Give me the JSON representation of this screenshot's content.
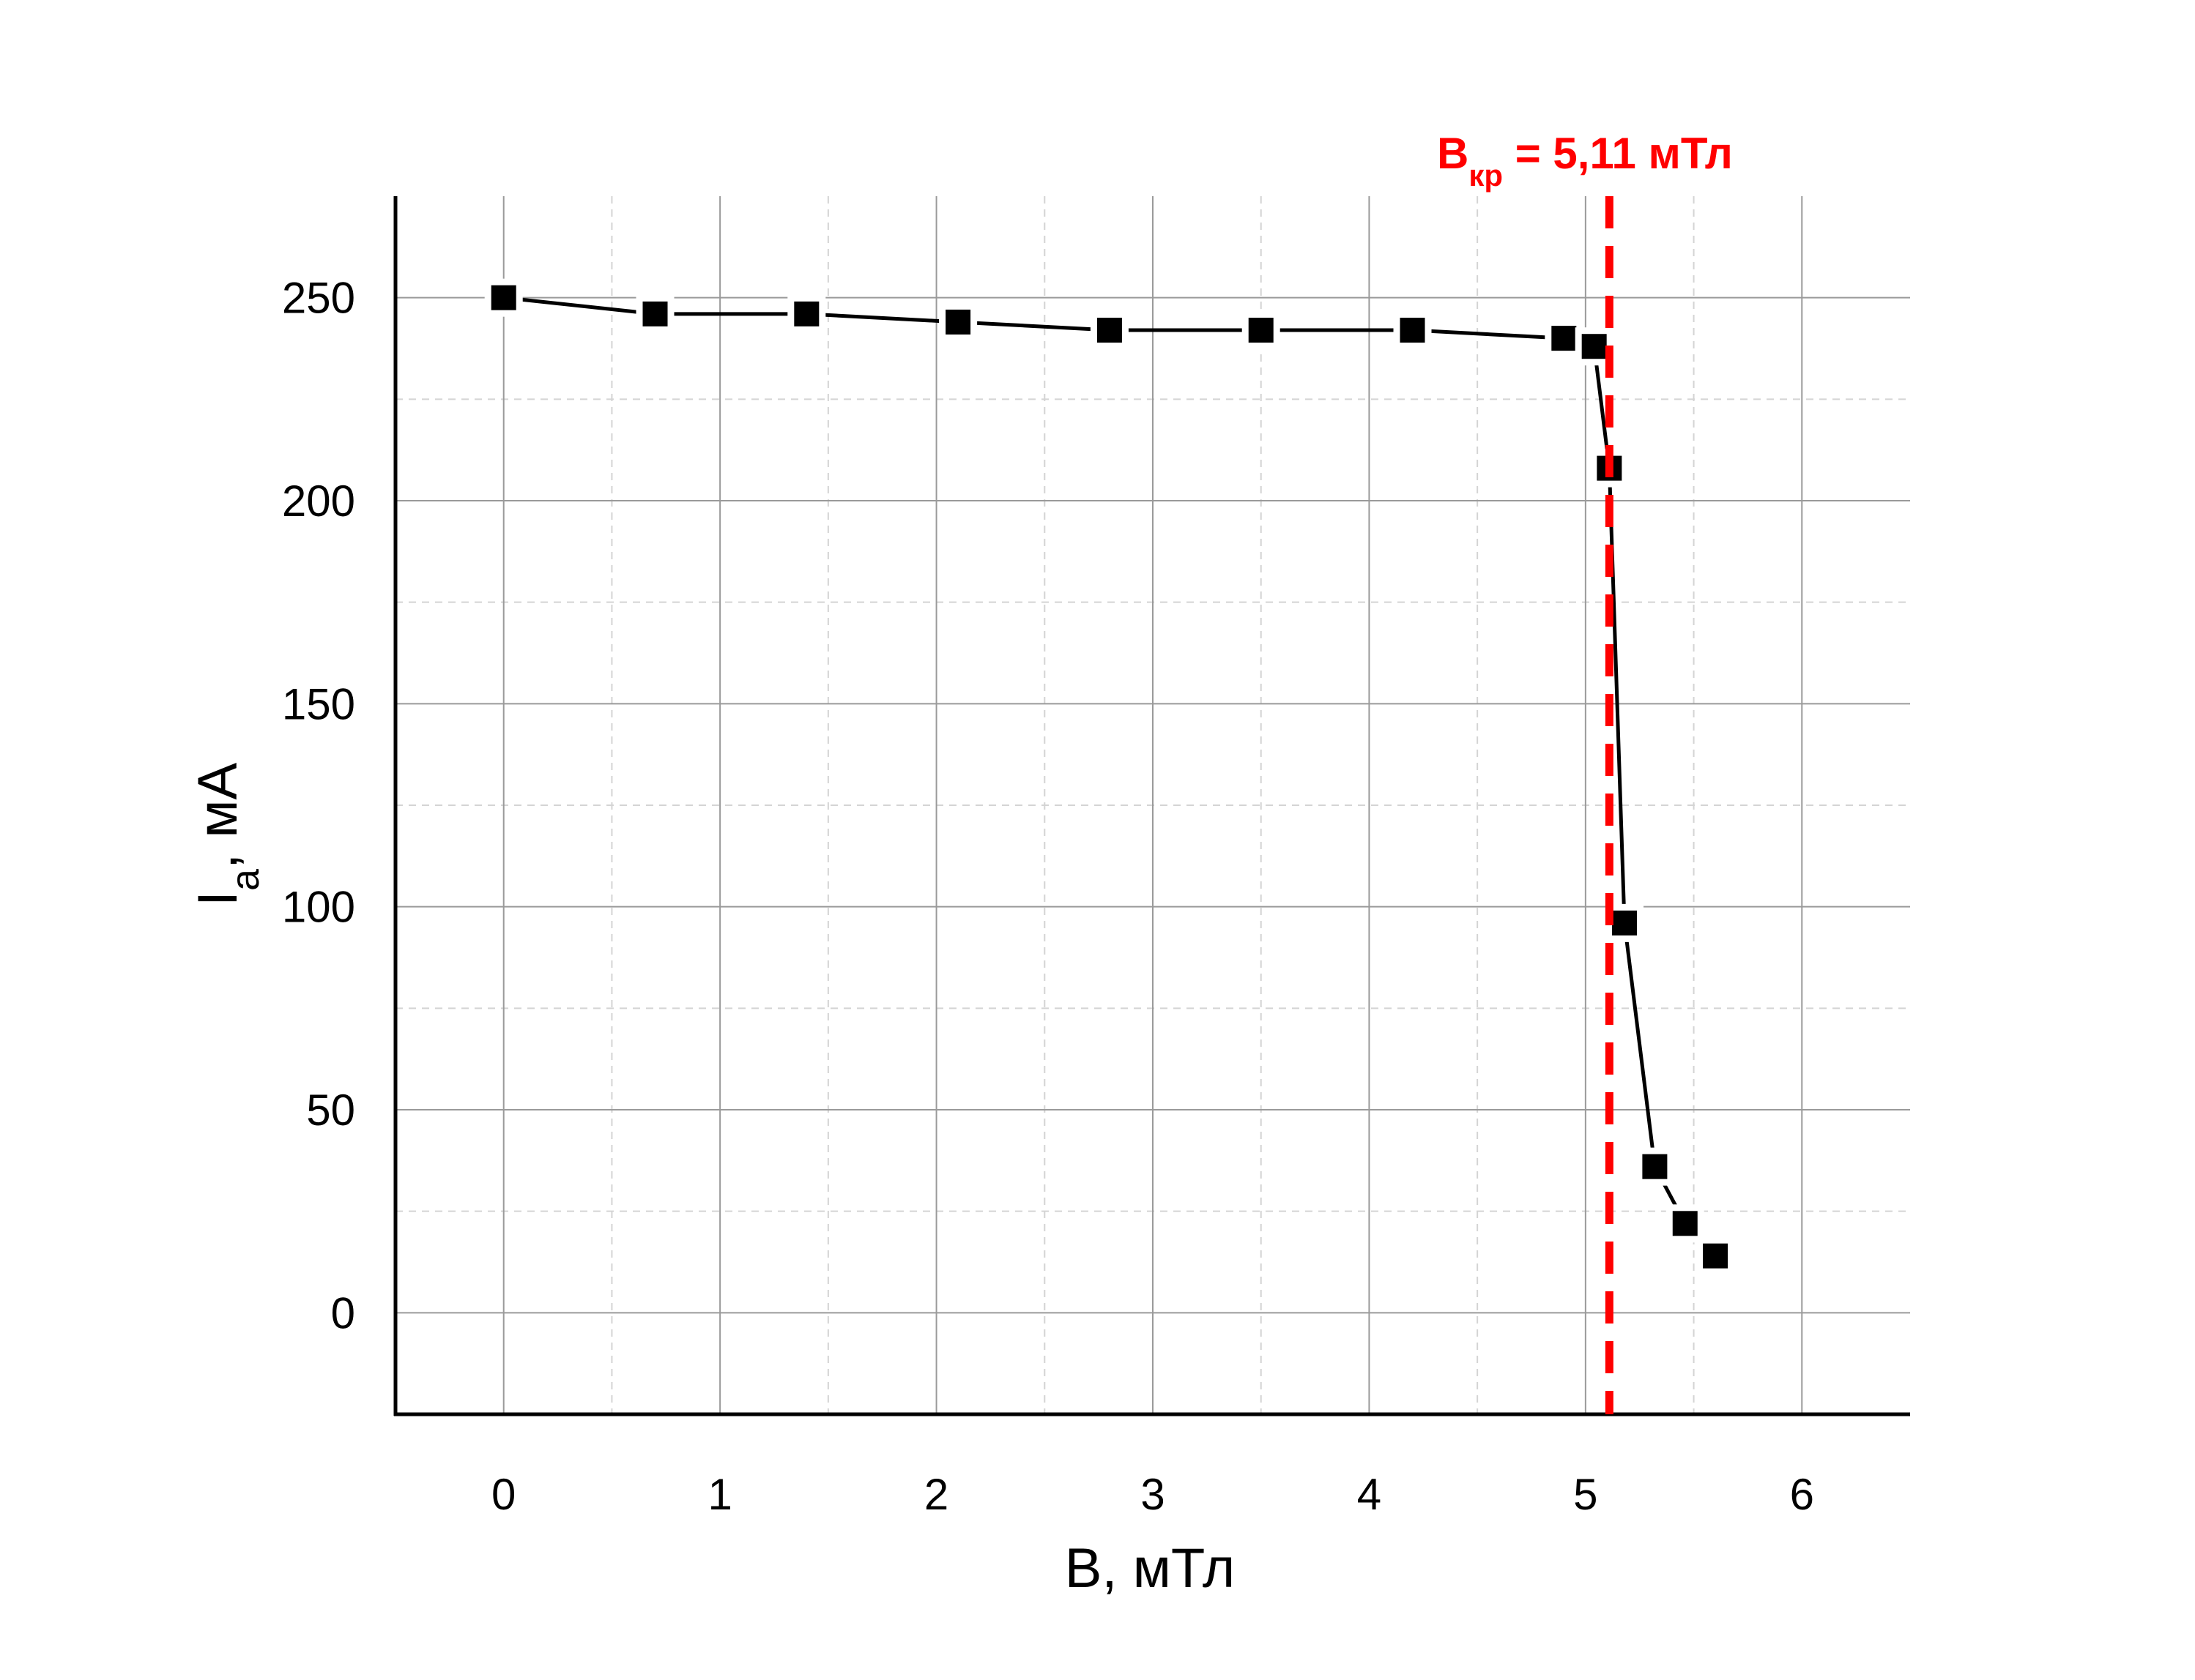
{
  "chart_data": {
    "type": "line",
    "xlabel": "B, мТл",
    "ylabel": {
      "main": "I",
      "sub": "a",
      "rest": ", мА"
    },
    "xlim": [
      -0.5,
      6.5
    ],
    "ylim": [
      -25,
      275
    ],
    "x_ticks": [
      0,
      1,
      2,
      3,
      4,
      5,
      6
    ],
    "y_ticks": [
      0,
      50,
      100,
      150,
      200,
      250
    ],
    "x_minor_ticks": [
      0.5,
      1.5,
      2.5,
      3.5,
      4.5,
      5.5
    ],
    "y_minor_ticks": [
      25,
      75,
      125,
      175,
      225
    ],
    "grid": true,
    "series": [
      {
        "marker": "square",
        "color": "#000000",
        "x": [
          0,
          0.7,
          1.4,
          2.1,
          2.8,
          3.5,
          4.2,
          4.9,
          5.04,
          5.11,
          5.18,
          5.32,
          5.46,
          5.6
        ],
        "y": [
          250,
          246,
          246,
          244,
          242,
          242,
          242,
          240,
          238,
          208,
          96,
          36,
          22,
          14
        ]
      }
    ],
    "critical_line": {
      "x": 5.11,
      "color": "#ff0000",
      "label": {
        "main": "B",
        "sub": "кр",
        "rest": " = 5,11 мТл"
      }
    }
  }
}
